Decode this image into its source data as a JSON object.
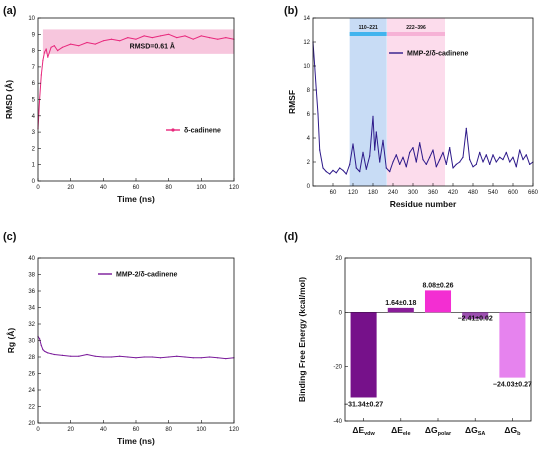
{
  "chart_data": [
    {
      "panel": "(a)",
      "type": "line",
      "xlabel": "Time (ns)",
      "ylabel": "RMSD (Å)",
      "xlim": [
        0,
        120
      ],
      "ylim": [
        0,
        10
      ],
      "xticks": [
        0,
        20,
        40,
        60,
        80,
        100,
        120
      ],
      "yticks": [
        0,
        1,
        2,
        3,
        4,
        5,
        6,
        7,
        8,
        9,
        10
      ],
      "grid": false,
      "legend_position": "center-right",
      "series": [
        {
          "name": "δ-cadinene",
          "color": "#e8287c",
          "x": [
            0,
            1,
            2,
            3,
            4,
            5,
            6,
            8,
            10,
            12,
            15,
            20,
            25,
            30,
            35,
            40,
            45,
            50,
            55,
            60,
            65,
            70,
            75,
            80,
            85,
            90,
            95,
            100,
            105,
            110,
            115,
            120
          ],
          "y": [
            3.2,
            5.0,
            6.5,
            7.4,
            7.9,
            8.1,
            7.6,
            8.2,
            8.3,
            8.0,
            8.2,
            8.4,
            8.3,
            8.5,
            8.4,
            8.6,
            8.7,
            8.6,
            8.8,
            8.7,
            8.9,
            8.8,
            8.9,
            9.0,
            8.8,
            8.9,
            8.7,
            8.9,
            8.8,
            8.7,
            8.8,
            8.7
          ]
        }
      ],
      "annotations": [
        {
          "text": "RMSD=0.61 Å",
          "x": 70,
          "y": 8.3
        }
      ],
      "shaded_band": {
        "y": [
          7.8,
          9.3
        ],
        "color": "#f7c6dd"
      }
    },
    {
      "panel": "(b)",
      "type": "line",
      "xlabel": "Residue number",
      "ylabel": "RMSF",
      "xlim": [
        0,
        660
      ],
      "ylim": [
        0,
        14
      ],
      "xticks": [
        60,
        120,
        180,
        240,
        300,
        360,
        420,
        480,
        540,
        600,
        660
      ],
      "yticks": [
        0,
        2,
        4,
        6,
        8,
        10,
        12,
        14
      ],
      "grid": false,
      "legend_position": "top-right",
      "series": [
        {
          "name": "MMP-2/δ-cadinene",
          "color": "#2e1a8a",
          "x": [
            0,
            5,
            10,
            15,
            20,
            30,
            40,
            50,
            60,
            70,
            80,
            90,
            100,
            110,
            120,
            130,
            140,
            150,
            160,
            170,
            180,
            185,
            190,
            200,
            210,
            220,
            230,
            240,
            250,
            260,
            270,
            280,
            290,
            300,
            310,
            320,
            330,
            340,
            350,
            360,
            370,
            380,
            390,
            400,
            410,
            420,
            430,
            440,
            450,
            460,
            470,
            480,
            490,
            500,
            510,
            520,
            530,
            540,
            550,
            560,
            570,
            580,
            590,
            600,
            610,
            620,
            630,
            640,
            650,
            660
          ],
          "y": [
            12.0,
            10.0,
            8.0,
            6.0,
            3.0,
            1.5,
            1.2,
            1.0,
            1.3,
            1.1,
            1.5,
            1.3,
            1.0,
            1.8,
            3.5,
            1.5,
            1.2,
            2.8,
            1.4,
            2.5,
            5.8,
            3.0,
            4.5,
            2.0,
            3.8,
            1.5,
            1.2,
            2.0,
            2.6,
            1.8,
            2.4,
            1.6,
            2.8,
            3.2,
            2.0,
            3.6,
            2.2,
            1.8,
            2.4,
            3.0,
            1.6,
            2.2,
            2.8,
            1.8,
            3.2,
            1.5,
            1.8,
            2.0,
            2.4,
            4.8,
            2.2,
            1.6,
            1.8,
            2.8,
            2.0,
            2.6,
            1.8,
            2.6,
            2.0,
            2.4,
            2.2,
            2.8,
            2.0,
            2.4,
            1.6,
            3.0,
            2.2,
            2.6,
            1.8,
            2.0
          ]
        }
      ],
      "regions": [
        {
          "label": "110–221",
          "start": 110,
          "end": 221,
          "fill": "#c8dcf5",
          "bar": "#41b4ee"
        },
        {
          "label": "222–396",
          "start": 222,
          "end": 396,
          "fill": "#fcdcec",
          "bar": "#f6b2d6"
        }
      ]
    },
    {
      "panel": "(c)",
      "type": "line",
      "xlabel": "Time (ns)",
      "ylabel": "Rg (Å)",
      "xlim": [
        0,
        120
      ],
      "ylim": [
        20,
        40
      ],
      "xticks": [
        0,
        20,
        40,
        60,
        80,
        100,
        120
      ],
      "yticks": [
        20,
        22,
        24,
        26,
        28,
        30,
        32,
        34,
        36,
        38,
        40
      ],
      "grid": false,
      "legend_position": "top-center",
      "series": [
        {
          "name": "MMP-2/δ-cadinene",
          "color": "#7a1a9a",
          "x": [
            0,
            1,
            2,
            3,
            4,
            5,
            6,
            8,
            10,
            15,
            20,
            25,
            30,
            35,
            40,
            45,
            50,
            55,
            60,
            65,
            70,
            75,
            80,
            85,
            90,
            95,
            100,
            105,
            110,
            115,
            120
          ],
          "y": [
            30.5,
            30.2,
            29.4,
            28.9,
            28.7,
            28.6,
            28.5,
            28.4,
            28.3,
            28.2,
            28.1,
            28.1,
            28.3,
            28.1,
            28.0,
            28.0,
            28.1,
            28.0,
            27.9,
            28.0,
            28.0,
            27.9,
            28.0,
            28.1,
            28.0,
            27.9,
            27.9,
            28.0,
            27.9,
            27.8,
            27.9
          ]
        }
      ]
    },
    {
      "panel": "(d)",
      "type": "bar",
      "ylabel": "Binding Free Energy (kcal/mol)",
      "ylim": [
        -40,
        20
      ],
      "yticks": [
        -40,
        -20,
        0,
        20
      ],
      "grid": false,
      "categories": [
        {
          "main": "ΔE",
          "sub": "vdw"
        },
        {
          "main": "ΔE",
          "sub": "ele"
        },
        {
          "main": "ΔG",
          "sub": "polar"
        },
        {
          "main": "ΔG",
          "sub": "SA"
        },
        {
          "main": "ΔG",
          "sub": "b"
        }
      ],
      "values": [
        -31.34,
        1.64,
        8.08,
        -2.41,
        -24.03
      ],
      "labels": [
        "−31.34±0.27",
        "1.64±0.18",
        "8.08±0.26",
        "−2.41±0.02",
        "−24.03±0.27"
      ],
      "colors": [
        "#76118a",
        "#8a1d99",
        "#f32ed2",
        "#9c4fb0",
        "#e683ee"
      ]
    }
  ]
}
